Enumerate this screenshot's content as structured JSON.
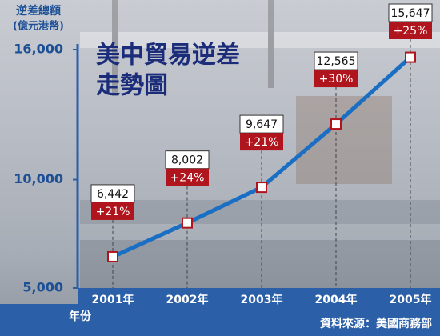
{
  "chart_data": {
    "type": "line",
    "title": "美中貿易逆差",
    "subtitle": "走勢圖",
    "ylabel": "逆差總額",
    "yunit": "(億元港幣)",
    "xlabel": "年份",
    "source": "資料來源：美國商務部",
    "categories": [
      "2001年",
      "2002年",
      "2003年",
      "2004年",
      "2005年"
    ],
    "series": [
      {
        "color": "#1a6fc4",
        "values": [
          6442,
          8002,
          9647,
          12565,
          15647
        ],
        "value_labels": [
          "6,442",
          "8,002",
          "9,647",
          "12,565",
          "15,647"
        ],
        "growth_labels": [
          "+21%",
          "+24%",
          "+21%",
          "+30%",
          "+25%"
        ]
      }
    ],
    "ylim": [
      5000,
      16000
    ],
    "yticks": [
      {
        "value": 5000,
        "label": "5,000"
      },
      {
        "value": 10000,
        "label": "10,000"
      },
      {
        "value": 16000,
        "label": "16,000"
      }
    ]
  }
}
